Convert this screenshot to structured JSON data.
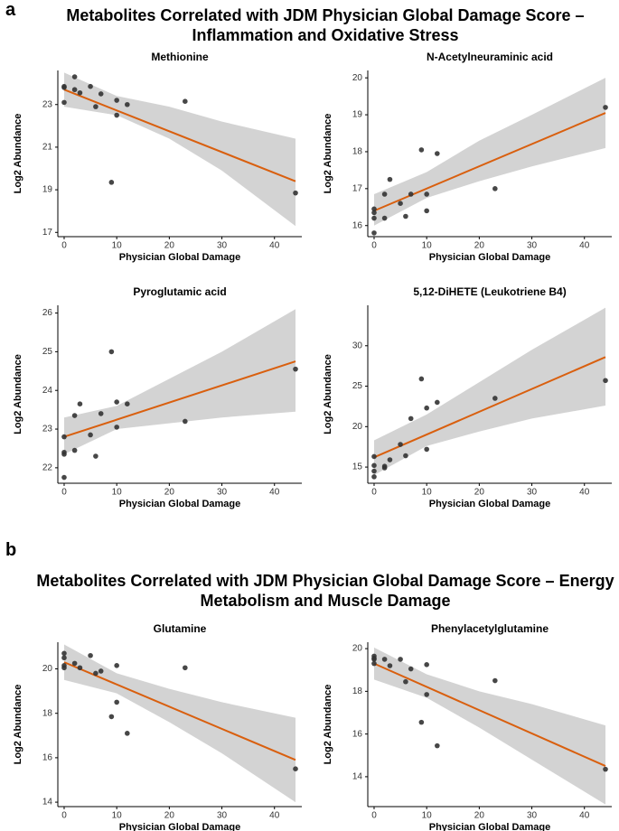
{
  "panels": [
    {
      "label": "a",
      "title": "Metabolites Correlated with JDM Physician Global Damage Score – Inflammation and Oxidative Stress"
    },
    {
      "label": "b",
      "title": "Metabolites Correlated with JDM Physician Global Damage Score – Energy Metabolism and Muscle Damage"
    }
  ],
  "chart_data": [
    {
      "type": "scatter",
      "title": "Methionine",
      "xlabel": "Physician Global Damage",
      "ylabel": "Log2 Abundance",
      "x": [
        0,
        0,
        0,
        2,
        2,
        3,
        5,
        6,
        7,
        9,
        10,
        10,
        12,
        23,
        44
      ],
      "y": [
        23.85,
        23.1,
        23.8,
        24.3,
        23.7,
        23.55,
        23.85,
        22.9,
        23.5,
        19.35,
        23.2,
        22.5,
        23.0,
        23.15,
        18.85
      ],
      "fit": {
        "x": [
          0,
          44
        ],
        "y": [
          23.7,
          19.4
        ]
      },
      "band": {
        "x": [
          0,
          10,
          20,
          30,
          44
        ],
        "lower": [
          22.9,
          22.5,
          21.4,
          19.9,
          17.3
        ],
        "upper": [
          24.5,
          23.4,
          22.9,
          22.2,
          21.4
        ]
      },
      "xlim": [
        -1.2,
        45.2
      ],
      "xticks": [
        0,
        10,
        20,
        30,
        40
      ],
      "ylim": [
        16.8,
        24.6
      ],
      "yticks": [
        17,
        19,
        21,
        23
      ],
      "point_color": "#333333",
      "fit_color": "#d95f0e",
      "band_color": "#d3d3d3"
    },
    {
      "type": "scatter",
      "title": "N-Acetylneuraminic acid",
      "xlabel": "Physician Global Damage",
      "ylabel": "Log2 Abundance",
      "x": [
        0,
        0,
        0,
        0,
        2,
        2,
        3,
        5,
        6,
        7,
        9,
        10,
        10,
        12,
        23,
        44
      ],
      "y": [
        15.8,
        16.2,
        16.35,
        16.45,
        16.2,
        16.85,
        17.25,
        16.6,
        16.25,
        16.85,
        18.05,
        16.85,
        16.4,
        17.95,
        17.0,
        19.2
      ],
      "fit": {
        "x": [
          0,
          44
        ],
        "y": [
          16.4,
          19.05
        ]
      },
      "band": {
        "x": [
          0,
          10,
          20,
          30,
          44
        ],
        "lower": [
          16.0,
          16.75,
          17.2,
          17.6,
          18.1
        ],
        "upper": [
          16.85,
          17.45,
          18.3,
          19.0,
          20.0
        ]
      },
      "xlim": [
        -1.2,
        45.2
      ],
      "xticks": [
        0,
        10,
        20,
        30,
        40
      ],
      "ylim": [
        15.7,
        20.2
      ],
      "yticks": [
        16,
        17,
        18,
        19,
        20
      ],
      "point_color": "#333333",
      "fit_color": "#d95f0e",
      "band_color": "#d3d3d3"
    },
    {
      "type": "scatter",
      "title": "Pyroglutamic acid",
      "xlabel": "Physician Global Damage",
      "ylabel": "Log2 Abundance",
      "x": [
        0,
        0,
        0,
        0,
        2,
        2,
        3,
        5,
        6,
        7,
        9,
        10,
        10,
        12,
        23,
        44
      ],
      "y": [
        21.75,
        22.35,
        22.4,
        22.8,
        22.45,
        23.35,
        23.65,
        22.85,
        22.3,
        23.4,
        25.0,
        23.7,
        23.05,
        23.65,
        23.2,
        24.55
      ],
      "fit": {
        "x": [
          0,
          44
        ],
        "y": [
          22.8,
          24.75
        ]
      },
      "band": {
        "x": [
          0,
          10,
          20,
          30,
          44
        ],
        "lower": [
          22.35,
          23.0,
          23.15,
          23.3,
          23.45
        ],
        "upper": [
          23.3,
          23.6,
          24.3,
          25.0,
          26.1
        ]
      },
      "xlim": [
        -1.2,
        45.2
      ],
      "xticks": [
        0,
        10,
        20,
        30,
        40
      ],
      "ylim": [
        21.6,
        26.2
      ],
      "yticks": [
        22,
        23,
        24,
        25,
        26
      ],
      "point_color": "#333333",
      "fit_color": "#d95f0e",
      "band_color": "#d3d3d3"
    },
    {
      "type": "scatter",
      "title": "5,12-DiHETE (Leukotriene B4)",
      "xlabel": "Physician Global Damage",
      "ylabel": "Log2 Abundance",
      "x": [
        0,
        0,
        0,
        0,
        2,
        2,
        3,
        5,
        6,
        7,
        9,
        10,
        10,
        12,
        23,
        44
      ],
      "y": [
        13.8,
        14.5,
        15.2,
        16.3,
        14.9,
        15.1,
        15.9,
        17.8,
        16.4,
        21.0,
        25.9,
        22.3,
        17.2,
        23.0,
        23.5,
        25.7
      ],
      "fit": {
        "x": [
          0,
          44
        ],
        "y": [
          16.2,
          28.6
        ]
      },
      "band": {
        "x": [
          0,
          10,
          20,
          30,
          44
        ],
        "lower": [
          14.0,
          17.6,
          19.4,
          21.0,
          22.6
        ],
        "upper": [
          18.3,
          21.5,
          25.5,
          29.5,
          34.7
        ]
      },
      "xlim": [
        -1.2,
        45.2
      ],
      "xticks": [
        0,
        10,
        20,
        30,
        40
      ],
      "ylim": [
        13,
        35
      ],
      "yticks": [
        15,
        20,
        25,
        30
      ],
      "point_color": "#333333",
      "fit_color": "#d95f0e",
      "band_color": "#d3d3d3"
    },
    {
      "type": "scatter",
      "title": "Glutamine",
      "xlabel": "Physician Global Damage",
      "ylabel": "Log2 Abundance",
      "x": [
        0,
        0,
        0,
        0,
        2,
        3,
        5,
        6,
        7,
        9,
        10,
        10,
        12,
        23,
        44
      ],
      "y": [
        20.7,
        20.5,
        20.15,
        20.05,
        20.25,
        20.05,
        20.6,
        19.8,
        19.9,
        17.85,
        20.15,
        18.5,
        17.1,
        20.05,
        15.5
      ],
      "fit": {
        "x": [
          0,
          44
        ],
        "y": [
          20.3,
          15.9
        ]
      },
      "band": {
        "x": [
          0,
          10,
          20,
          30,
          44
        ],
        "lower": [
          19.5,
          18.9,
          17.6,
          16.2,
          14.0
        ],
        "upper": [
          21.1,
          19.8,
          19.1,
          18.5,
          17.8
        ]
      },
      "xlim": [
        -1.2,
        45.2
      ],
      "xticks": [
        0,
        10,
        20,
        30,
        40
      ],
      "ylim": [
        13.8,
        21.2
      ],
      "yticks": [
        14,
        16,
        18,
        20
      ],
      "point_color": "#333333",
      "fit_color": "#d95f0e",
      "band_color": "#d3d3d3"
    },
    {
      "type": "scatter",
      "title": "Phenylacetylglutamine",
      "xlabel": "Physician Global Damage",
      "ylabel": "Log2 Abundance",
      "x": [
        0,
        0,
        0,
        0,
        2,
        3,
        5,
        6,
        7,
        9,
        10,
        10,
        12,
        23,
        44
      ],
      "y": [
        19.65,
        19.55,
        19.3,
        19.5,
        19.5,
        19.2,
        19.5,
        18.45,
        19.05,
        16.55,
        19.25,
        17.85,
        15.45,
        18.5,
        14.35
      ],
      "fit": {
        "x": [
          0,
          44
        ],
        "y": [
          19.3,
          14.5
        ]
      },
      "band": {
        "x": [
          0,
          10,
          20,
          30,
          44
        ],
        "lower": [
          18.55,
          17.7,
          16.3,
          14.8,
          12.7
        ],
        "upper": [
          20.05,
          18.8,
          18.0,
          17.4,
          16.4
        ]
      },
      "xlim": [
        -1.2,
        45.2
      ],
      "xticks": [
        0,
        10,
        20,
        30,
        40
      ],
      "ylim": [
        12.6,
        20.3
      ],
      "yticks": [
        14,
        16,
        18,
        20
      ],
      "point_color": "#333333",
      "fit_color": "#d95f0e",
      "band_color": "#d3d3d3"
    }
  ]
}
